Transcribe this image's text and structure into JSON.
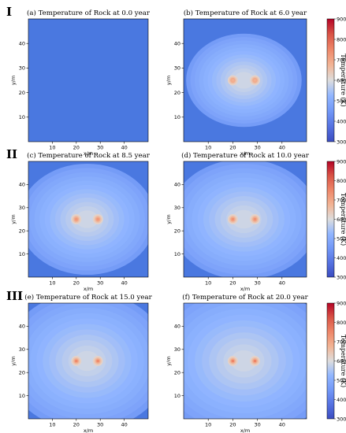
{
  "row_labels": [
    "I",
    "II",
    "III"
  ],
  "chart_data": [
    {
      "type": "heatmap",
      "title": "(a) Temperature of Rock at 0.0 year",
      "row": 0,
      "col": 0,
      "time_years": 0.0,
      "xlabel": "x/m",
      "ylabel": "y/m",
      "xlim": [
        0,
        50
      ],
      "ylim": [
        0,
        50
      ],
      "xticks": [
        10,
        20,
        30,
        40
      ],
      "yticks": [
        10,
        20,
        30,
        40
      ],
      "heat_sources": [
        [
          20,
          25
        ],
        [
          29,
          25
        ]
      ],
      "peak_temperature_K": 300,
      "front_radius": [
        0,
        0
      ]
    },
    {
      "type": "heatmap",
      "title": "(b) Temperature of Rock at 6.0 year",
      "row": 0,
      "col": 1,
      "time_years": 6.0,
      "xlabel": "x/m",
      "ylabel": "y/m",
      "xlim": [
        0,
        50
      ],
      "ylim": [
        0,
        50
      ],
      "xticks": [
        10,
        20,
        30,
        40
      ],
      "yticks": [
        10,
        20,
        30,
        40
      ],
      "heat_sources": [
        [
          20,
          25
        ],
        [
          29,
          25
        ]
      ],
      "peak_temperature_K": 680,
      "front_radius": [
        21,
        17
      ]
    },
    {
      "type": "heatmap",
      "title": "(c) Temperature of Rock at 8.5 year",
      "row": 1,
      "col": 0,
      "time_years": 8.5,
      "xlabel": "x/m",
      "ylabel": "y/m",
      "xlim": [
        0,
        50
      ],
      "ylim": [
        0,
        50
      ],
      "xticks": [
        10,
        20,
        30,
        40
      ],
      "yticks": [
        10,
        20,
        30,
        40
      ],
      "heat_sources": [
        [
          20,
          25
        ],
        [
          29,
          25
        ]
      ],
      "peak_temperature_K": 720,
      "front_radius": [
        26,
        22
      ]
    },
    {
      "type": "heatmap",
      "title": "(d) Temperature of Rock at 10.0 year",
      "row": 1,
      "col": 1,
      "time_years": 10.0,
      "xlabel": "x/m",
      "ylabel": "y/m",
      "xlim": [
        0,
        50
      ],
      "ylim": [
        0,
        50
      ],
      "xticks": [
        10,
        20,
        30,
        40
      ],
      "yticks": [
        10,
        20,
        30,
        40
      ],
      "heat_sources": [
        [
          20,
          25
        ],
        [
          29,
          25
        ]
      ],
      "peak_temperature_K": 730,
      "front_radius": [
        28,
        24
      ]
    },
    {
      "type": "heatmap",
      "title": "(e) Temperature of Rock at 15.0 year",
      "row": 2,
      "col": 0,
      "time_years": 15.0,
      "xlabel": "x/m",
      "ylabel": "y/m",
      "xlim": [
        0,
        50
      ],
      "ylim": [
        0,
        50
      ],
      "xticks": [
        10,
        20,
        30,
        40
      ],
      "yticks": [
        10,
        20,
        30,
        40
      ],
      "heat_sources": [
        [
          20,
          25
        ],
        [
          29,
          25
        ]
      ],
      "peak_temperature_K": 745,
      "front_radius": [
        32,
        28
      ]
    },
    {
      "type": "heatmap",
      "title": "(f) Temperature of Rock at 20.0 year",
      "row": 2,
      "col": 1,
      "time_years": 20.0,
      "xlabel": "x/m",
      "ylabel": "y/m",
      "xlim": [
        0,
        50
      ],
      "ylim": [
        0,
        50
      ],
      "xticks": [
        10,
        20,
        30,
        40
      ],
      "yticks": [
        10,
        20,
        30,
        40
      ],
      "heat_sources": [
        [
          20,
          25
        ],
        [
          29,
          25
        ]
      ],
      "peak_temperature_K": 755,
      "front_radius": [
        35,
        31
      ]
    }
  ],
  "colorbar": {
    "label": "Temperature (K)",
    "min": 300,
    "max": 900,
    "ticks": [
      300,
      400,
      500,
      600,
      700,
      800,
      900
    ],
    "colormap": "coolwarm",
    "base_color": "#4a78e0",
    "rows": [
      0,
      1,
      2
    ]
  }
}
